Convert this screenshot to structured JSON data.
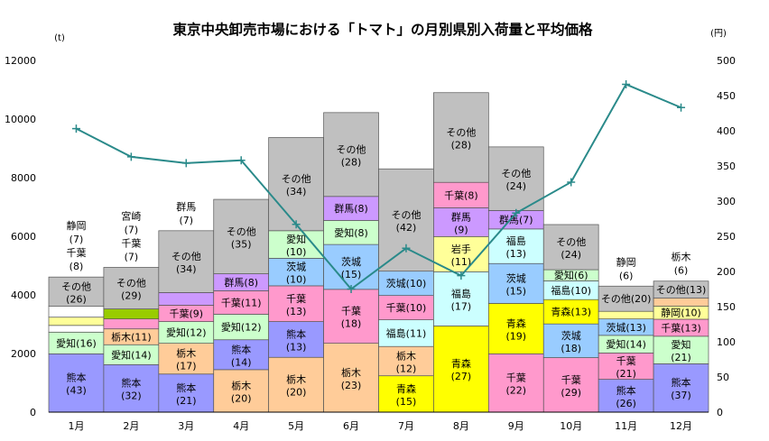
{
  "chart_data": {
    "type": "bar",
    "title": "東京中央卸売市場における「トマト」の月別県別入荷量と平均価格",
    "ylabel_left": "(t)",
    "ylabel_right": "(円)",
    "ylim_left": [
      0,
      12000
    ],
    "ylim_right": [
      0,
      500
    ],
    "yticks_left": [
      "0",
      "2000",
      "4000",
      "6000",
      "8000",
      "10000",
      "12000"
    ],
    "yticks_right": [
      "0",
      "50",
      "100",
      "150",
      "200",
      "250",
      "300",
      "350",
      "400",
      "450",
      "500"
    ],
    "categories": [
      "1月",
      "2月",
      "3月",
      "4月",
      "5月",
      "6月",
      "7月",
      "8月",
      "9月",
      "10月",
      "11月",
      "12月"
    ],
    "stacks": [
      [
        {
          "label": "熊本",
          "pct": "(43)",
          "value": 1990,
          "color": "#9999ff"
        },
        {
          "label": "愛知(16)",
          "pct": "",
          "value": 740,
          "color": "#ccffcc"
        },
        {
          "label": "",
          "pct": "",
          "value": 230,
          "color": "#ffffff"
        },
        {
          "label": "",
          "pct": "",
          "value": 280,
          "color": "#ffff99"
        },
        {
          "label": "",
          "pct": "",
          "value": 370,
          "color": "#ffffff"
        },
        {
          "label": "その他",
          "pct": "(26)",
          "value": 1000,
          "color": "#c0c0c0"
        }
      ],
      [
        {
          "label": "熊本",
          "pct": "(32)",
          "value": 1620,
          "color": "#9999ff"
        },
        {
          "label": "愛知(14)",
          "pct": "",
          "value": 680,
          "color": "#ccffcc"
        },
        {
          "label": "栃木(11)",
          "pct": "",
          "value": 540,
          "color": "#ffcc99"
        },
        {
          "label": "",
          "pct": "",
          "value": 340,
          "color": "#ff99cc"
        },
        {
          "label": "",
          "pct": "",
          "value": 340,
          "color": "#99cc00"
        },
        {
          "label": "その他",
          "pct": "(29)",
          "value": 1420,
          "color": "#c0c0c0"
        }
      ],
      [
        {
          "label": "熊本",
          "pct": "(21)",
          "value": 1300,
          "color": "#9999ff"
        },
        {
          "label": "栃木",
          "pct": "(17)",
          "value": 1050,
          "color": "#ffcc99"
        },
        {
          "label": "愛知(12)",
          "pct": "",
          "value": 740,
          "color": "#ccffcc"
        },
        {
          "label": "千葉(9)",
          "pct": "",
          "value": 560,
          "color": "#ff99cc"
        },
        {
          "label": "",
          "pct": "",
          "value": 430,
          "color": "#cc99ff"
        },
        {
          "label": "その他",
          "pct": "(34)",
          "value": 2110,
          "color": "#c0c0c0"
        }
      ],
      [
        {
          "label": "栃木",
          "pct": "(20)",
          "value": 1450,
          "color": "#ffcc99"
        },
        {
          "label": "熊本",
          "pct": "(14)",
          "value": 1020,
          "color": "#9999ff"
        },
        {
          "label": "愛知(12)",
          "pct": "",
          "value": 870,
          "color": "#ccffcc"
        },
        {
          "label": "千葉(11)",
          "pct": "",
          "value": 800,
          "color": "#ff99cc"
        },
        {
          "label": "群馬(8)",
          "pct": "",
          "value": 580,
          "color": "#cc99ff"
        },
        {
          "label": "その他",
          "pct": "(35)",
          "value": 2540,
          "color": "#c0c0c0"
        }
      ],
      [
        {
          "label": "栃木",
          "pct": "(20)",
          "value": 1870,
          "color": "#ffcc99"
        },
        {
          "label": "熊本",
          "pct": "(13)",
          "value": 1220,
          "color": "#9999ff"
        },
        {
          "label": "千葉",
          "pct": "(13)",
          "value": 1220,
          "color": "#ff99cc"
        },
        {
          "label": "茨城",
          "pct": "(10)",
          "value": 940,
          "color": "#99ccff"
        },
        {
          "label": "愛知",
          "pct": "(10)",
          "value": 940,
          "color": "#ccffcc"
        },
        {
          "label": "その他",
          "pct": "(34)",
          "value": 3180,
          "color": "#c0c0c0"
        }
      ],
      [
        {
          "label": "栃木",
          "pct": "(23)",
          "value": 2350,
          "color": "#ffcc99"
        },
        {
          "label": "千葉",
          "pct": "(18)",
          "value": 1840,
          "color": "#ff99cc"
        },
        {
          "label": "茨城",
          "pct": "(15)",
          "value": 1530,
          "color": "#99ccff"
        },
        {
          "label": "愛知(8)",
          "pct": "",
          "value": 820,
          "color": "#ccffcc"
        },
        {
          "label": "群馬(8)",
          "pct": "",
          "value": 820,
          "color": "#cc99ff"
        },
        {
          "label": "その他",
          "pct": "(28)",
          "value": 2860,
          "color": "#c0c0c0"
        }
      ],
      [
        {
          "label": "青森",
          "pct": "(15)",
          "value": 1240,
          "color": "#ffff00"
        },
        {
          "label": "栃木",
          "pct": "(12)",
          "value": 1000,
          "color": "#ffcc99"
        },
        {
          "label": "福島(11)",
          "pct": "",
          "value": 910,
          "color": "#ccffff"
        },
        {
          "label": "千葉(10)",
          "pct": "",
          "value": 830,
          "color": "#ff99cc"
        },
        {
          "label": "茨城(10)",
          "pct": "",
          "value": 830,
          "color": "#99ccff"
        },
        {
          "label": "その他",
          "pct": "(42)",
          "value": 3490,
          "color": "#c0c0c0"
        }
      ],
      [
        {
          "label": "青森",
          "pct": "(27)",
          "value": 2940,
          "color": "#ffff00"
        },
        {
          "label": "福島",
          "pct": "(17)",
          "value": 1850,
          "color": "#ccffff"
        },
        {
          "label": "岩手",
          "pct": "(11)",
          "value": 1200,
          "color": "#ffff99"
        },
        {
          "label": "群馬",
          "pct": "(9)",
          "value": 980,
          "color": "#cc99ff"
        },
        {
          "label": "千葉(8)",
          "pct": "",
          "value": 870,
          "color": "#ff99cc"
        },
        {
          "label": "その他",
          "pct": "(28)",
          "value": 3060,
          "color": "#c0c0c0"
        }
      ],
      [
        {
          "label": "千葉",
          "pct": "(22)",
          "value": 1990,
          "color": "#ff99cc"
        },
        {
          "label": "青森",
          "pct": "(19)",
          "value": 1720,
          "color": "#ffff00"
        },
        {
          "label": "茨城",
          "pct": "(15)",
          "value": 1360,
          "color": "#99ccff"
        },
        {
          "label": "福島",
          "pct": "(13)",
          "value": 1180,
          "color": "#ccffff"
        },
        {
          "label": "群馬(7)",
          "pct": "",
          "value": 630,
          "color": "#cc99ff"
        },
        {
          "label": "その他",
          "pct": "(24)",
          "value": 2170,
          "color": "#c0c0c0"
        }
      ],
      [
        {
          "label": "千葉",
          "pct": "(29)",
          "value": 1860,
          "color": "#ff99cc"
        },
        {
          "label": "茨城",
          "pct": "(18)",
          "value": 1150,
          "color": "#99ccff"
        },
        {
          "label": "青森(13)",
          "pct": "",
          "value": 830,
          "color": "#ffff00"
        },
        {
          "label": "福島(10)",
          "pct": "",
          "value": 640,
          "color": "#ccffff"
        },
        {
          "label": "愛知(6)",
          "pct": "",
          "value": 380,
          "color": "#ccffcc"
        },
        {
          "label": "その他",
          "pct": "(24)",
          "value": 1540,
          "color": "#c0c0c0"
        }
      ],
      [
        {
          "label": "熊本",
          "pct": "(26)",
          "value": 1120,
          "color": "#9999ff"
        },
        {
          "label": "千葉",
          "pct": "(21)",
          "value": 900,
          "color": "#ff99cc"
        },
        {
          "label": "愛知(14)",
          "pct": "",
          "value": 600,
          "color": "#ccffcc"
        },
        {
          "label": "茨城(13)",
          "pct": "",
          "value": 560,
          "color": "#99ccff"
        },
        {
          "label": "",
          "pct": "",
          "value": 260,
          "color": "#ffff99"
        },
        {
          "label": "その他(20)",
          "pct": "",
          "value": 860,
          "color": "#c0c0c0"
        }
      ],
      [
        {
          "label": "熊本",
          "pct": "(37)",
          "value": 1650,
          "color": "#9999ff"
        },
        {
          "label": "愛知",
          "pct": "(21)",
          "value": 940,
          "color": "#ccffcc"
        },
        {
          "label": "千葉(13)",
          "pct": "",
          "value": 580,
          "color": "#ff99cc"
        },
        {
          "label": "静岡(10)",
          "pct": "",
          "value": 450,
          "color": "#ffff99"
        },
        {
          "label": "",
          "pct": "",
          "value": 270,
          "color": "#ffcc99"
        },
        {
          "label": "その他(13)",
          "pct": "",
          "value": 580,
          "color": "#c0c0c0"
        }
      ]
    ],
    "top_labels": [
      [
        "静岡",
        "(7)",
        "千葉",
        "(8)"
      ],
      [
        "宮崎",
        "(7)",
        "千葉",
        "(7)"
      ],
      [
        "群馬",
        "(7)"
      ],
      [],
      [],
      [],
      [],
      [],
      [],
      [],
      [
        "静岡",
        "(6)"
      ],
      [
        "栃木",
        "(6)"
      ]
    ],
    "price_series": {
      "values": [
        403,
        363,
        354,
        358,
        267,
        175,
        233,
        194,
        283,
        327,
        466,
        433
      ],
      "color": "#2a8a8a"
    },
    "bar_edge_color": "#555555"
  }
}
